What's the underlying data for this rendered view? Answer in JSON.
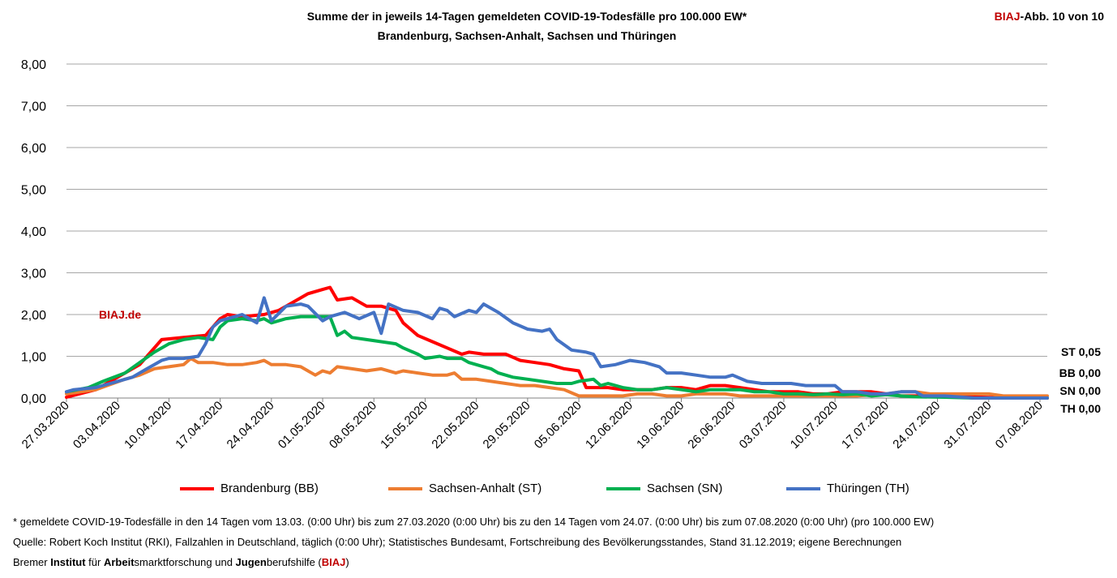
{
  "header": {
    "title_line1": "Summe der in jeweils 14-Tagen gemeldeten COVID-19-Todesfälle pro 100.000 EW*",
    "title_line2": "Brandenburg, Sachsen-Anhalt, Sachsen und Thüringen",
    "badge_red": "BIAJ",
    "badge_rest": "-Abb. 10 von 10"
  },
  "watermark": "BIAJ.de",
  "end_labels": [
    "ST 0,05",
    "BB 0,00",
    "SN 0,00",
    "TH 0,00"
  ],
  "footer": {
    "note": "* gemeldete COVID-19-Todesfälle in den 14 Tagen vom 13.03. (0:00 Uhr) bis zum 27.03.2020 (0:00 Uhr) bis zu den 14 Tagen vom 24.07. (0:00 Uhr) bis zum 07.08.2020 (0:00 Uhr) (pro 100.000 EW)",
    "source": "Quelle: Robert Koch Institut (RKI), Fallzahlen in Deutschland, täglich (0:00 Uhr); Statistisches Bundesamt, Fortschreibung des Bevölkerungsstandes, Stand 31.12.2019; eigene Berechnungen",
    "org_1": "Bremer ",
    "org_2": "Institut",
    "org_3": " für ",
    "org_4": "Arbeit",
    "org_5": "smarktforschung und ",
    "org_6": "Jugen",
    "org_7": "berufshilfe (",
    "org_8": "BIAJ",
    "org_9": ")"
  },
  "chart_data": {
    "type": "line",
    "ylim": [
      0,
      8
    ],
    "y_ticks": [
      "0,00",
      "1,00",
      "2,00",
      "3,00",
      "4,00",
      "5,00",
      "6,00",
      "7,00",
      "8,00"
    ],
    "x_tick_labels": [
      "27.03.2020",
      "03.04.2020",
      "10.04.2020",
      "17.04.2020",
      "24.04.2020",
      "01.05.2020",
      "08.05.2020",
      "15.05.2020",
      "22.05.2020",
      "29.05.2020",
      "05.06.2020",
      "12.06.2020",
      "19.06.2020",
      "26.06.2020",
      "03.07.2020",
      "10.07.2020",
      "17.07.2020",
      "24.07.2020",
      "31.07.2020",
      "07.08.2020"
    ],
    "grid": "horizontal",
    "legend_position": "bottom",
    "series": [
      {
        "name": "Brandenburg (BB)",
        "color": "#ff0000",
        "points": [
          [
            0,
            0.02
          ],
          [
            4,
            0.2
          ],
          [
            7,
            0.5
          ],
          [
            10,
            0.8
          ],
          [
            13,
            1.4
          ],
          [
            16,
            1.45
          ],
          [
            19,
            1.5
          ],
          [
            21,
            1.9
          ],
          [
            22,
            2.0
          ],
          [
            24,
            1.95
          ],
          [
            27,
            2.0
          ],
          [
            29,
            2.1
          ],
          [
            31,
            2.3
          ],
          [
            33,
            2.5
          ],
          [
            35,
            2.6
          ],
          [
            36,
            2.65
          ],
          [
            37,
            2.35
          ],
          [
            39,
            2.4
          ],
          [
            41,
            2.2
          ],
          [
            43,
            2.2
          ],
          [
            45,
            2.1
          ],
          [
            46,
            1.8
          ],
          [
            48,
            1.5
          ],
          [
            50,
            1.35
          ],
          [
            52,
            1.2
          ],
          [
            54,
            1.05
          ],
          [
            55,
            1.1
          ],
          [
            57,
            1.05
          ],
          [
            60,
            1.05
          ],
          [
            62,
            0.9
          ],
          [
            64,
            0.85
          ],
          [
            66,
            0.8
          ],
          [
            68,
            0.7
          ],
          [
            70,
            0.65
          ],
          [
            71,
            0.25
          ],
          [
            74,
            0.25
          ],
          [
            76,
            0.2
          ],
          [
            78,
            0.2
          ],
          [
            80,
            0.2
          ],
          [
            82,
            0.25
          ],
          [
            84,
            0.25
          ],
          [
            86,
            0.2
          ],
          [
            88,
            0.3
          ],
          [
            90,
            0.3
          ],
          [
            92,
            0.25
          ],
          [
            94,
            0.2
          ],
          [
            96,
            0.15
          ],
          [
            98,
            0.15
          ],
          [
            100,
            0.15
          ],
          [
            102,
            0.1
          ],
          [
            104,
            0.1
          ],
          [
            106,
            0.15
          ],
          [
            108,
            0.15
          ],
          [
            110,
            0.15
          ],
          [
            112,
            0.1
          ],
          [
            114,
            0.05
          ],
          [
            116,
            0.05
          ],
          [
            120,
            0.05
          ],
          [
            125,
            0.02
          ],
          [
            130,
            0.0
          ],
          [
            134,
            0.0
          ]
        ]
      },
      {
        "name": "Sachsen-Anhalt (ST)",
        "color": "#ed7d31",
        "points": [
          [
            0,
            0.1
          ],
          [
            4,
            0.2
          ],
          [
            8,
            0.45
          ],
          [
            10,
            0.55
          ],
          [
            12,
            0.7
          ],
          [
            14,
            0.75
          ],
          [
            16,
            0.8
          ],
          [
            17,
            0.95
          ],
          [
            18,
            0.85
          ],
          [
            20,
            0.85
          ],
          [
            22,
            0.8
          ],
          [
            24,
            0.8
          ],
          [
            26,
            0.85
          ],
          [
            27,
            0.9
          ],
          [
            28,
            0.8
          ],
          [
            30,
            0.8
          ],
          [
            32,
            0.75
          ],
          [
            34,
            0.55
          ],
          [
            35,
            0.65
          ],
          [
            36,
            0.6
          ],
          [
            37,
            0.75
          ],
          [
            39,
            0.7
          ],
          [
            41,
            0.65
          ],
          [
            43,
            0.7
          ],
          [
            45,
            0.6
          ],
          [
            46,
            0.65
          ],
          [
            48,
            0.6
          ],
          [
            50,
            0.55
          ],
          [
            52,
            0.55
          ],
          [
            53,
            0.6
          ],
          [
            54,
            0.45
          ],
          [
            56,
            0.45
          ],
          [
            58,
            0.4
          ],
          [
            60,
            0.35
          ],
          [
            62,
            0.3
          ],
          [
            64,
            0.3
          ],
          [
            66,
            0.25
          ],
          [
            68,
            0.2
          ],
          [
            70,
            0.05
          ],
          [
            72,
            0.05
          ],
          [
            76,
            0.05
          ],
          [
            78,
            0.1
          ],
          [
            80,
            0.1
          ],
          [
            82,
            0.05
          ],
          [
            84,
            0.05
          ],
          [
            86,
            0.1
          ],
          [
            88,
            0.1
          ],
          [
            90,
            0.1
          ],
          [
            92,
            0.05
          ],
          [
            94,
            0.05
          ],
          [
            96,
            0.05
          ],
          [
            98,
            0.05
          ],
          [
            100,
            0.05
          ],
          [
            104,
            0.05
          ],
          [
            108,
            0.05
          ],
          [
            112,
            0.1
          ],
          [
            114,
            0.15
          ],
          [
            116,
            0.15
          ],
          [
            118,
            0.1
          ],
          [
            122,
            0.1
          ],
          [
            126,
            0.1
          ],
          [
            128,
            0.05
          ],
          [
            130,
            0.05
          ],
          [
            134,
            0.05
          ]
        ]
      },
      {
        "name": "Sachsen (SN)",
        "color": "#00b050",
        "points": [
          [
            0,
            0.15
          ],
          [
            3,
            0.25
          ],
          [
            5,
            0.4
          ],
          [
            8,
            0.6
          ],
          [
            10,
            0.85
          ],
          [
            12,
            1.1
          ],
          [
            14,
            1.3
          ],
          [
            16,
            1.4
          ],
          [
            18,
            1.45
          ],
          [
            20,
            1.4
          ],
          [
            21,
            1.7
          ],
          [
            22,
            1.85
          ],
          [
            24,
            1.9
          ],
          [
            26,
            1.85
          ],
          [
            27,
            1.9
          ],
          [
            28,
            1.8
          ],
          [
            30,
            1.9
          ],
          [
            32,
            1.95
          ],
          [
            34,
            1.95
          ],
          [
            36,
            1.95
          ],
          [
            37,
            1.5
          ],
          [
            38,
            1.6
          ],
          [
            39,
            1.45
          ],
          [
            41,
            1.4
          ],
          [
            43,
            1.35
          ],
          [
            45,
            1.3
          ],
          [
            46,
            1.2
          ],
          [
            48,
            1.05
          ],
          [
            49,
            0.95
          ],
          [
            51,
            1.0
          ],
          [
            52,
            0.95
          ],
          [
            54,
            0.95
          ],
          [
            55,
            0.85
          ],
          [
            57,
            0.75
          ],
          [
            58,
            0.7
          ],
          [
            59,
            0.6
          ],
          [
            61,
            0.5
          ],
          [
            63,
            0.45
          ],
          [
            65,
            0.4
          ],
          [
            67,
            0.35
          ],
          [
            69,
            0.35
          ],
          [
            70,
            0.4
          ],
          [
            72,
            0.45
          ],
          [
            73,
            0.3
          ],
          [
            74,
            0.35
          ],
          [
            76,
            0.25
          ],
          [
            78,
            0.2
          ],
          [
            80,
            0.2
          ],
          [
            82,
            0.25
          ],
          [
            84,
            0.2
          ],
          [
            86,
            0.15
          ],
          [
            88,
            0.2
          ],
          [
            90,
            0.2
          ],
          [
            92,
            0.2
          ],
          [
            94,
            0.15
          ],
          [
            96,
            0.15
          ],
          [
            98,
            0.1
          ],
          [
            100,
            0.1
          ],
          [
            102,
            0.08
          ],
          [
            104,
            0.1
          ],
          [
            106,
            0.08
          ],
          [
            108,
            0.1
          ],
          [
            110,
            0.05
          ],
          [
            112,
            0.08
          ],
          [
            114,
            0.05
          ],
          [
            116,
            0.03
          ],
          [
            120,
            0.02
          ],
          [
            124,
            0.0
          ],
          [
            134,
            0.0
          ]
        ]
      },
      {
        "name": "Thüringen (TH)",
        "color": "#4472c4",
        "points": [
          [
            0,
            0.15
          ],
          [
            1,
            0.2
          ],
          [
            4,
            0.25
          ],
          [
            7,
            0.4
          ],
          [
            9,
            0.5
          ],
          [
            11,
            0.7
          ],
          [
            12,
            0.8
          ],
          [
            13,
            0.9
          ],
          [
            14,
            0.95
          ],
          [
            16,
            0.95
          ],
          [
            18,
            1.0
          ],
          [
            19,
            1.3
          ],
          [
            20,
            1.7
          ],
          [
            21,
            1.85
          ],
          [
            22,
            1.9
          ],
          [
            24,
            2.0
          ],
          [
            26,
            1.8
          ],
          [
            27,
            2.4
          ],
          [
            28,
            1.85
          ],
          [
            30,
            2.2
          ],
          [
            32,
            2.25
          ],
          [
            33,
            2.2
          ],
          [
            35,
            1.85
          ],
          [
            36,
            1.95
          ],
          [
            38,
            2.05
          ],
          [
            40,
            1.9
          ],
          [
            42,
            2.05
          ],
          [
            43,
            1.55
          ],
          [
            44,
            2.25
          ],
          [
            46,
            2.1
          ],
          [
            48,
            2.05
          ],
          [
            50,
            1.9
          ],
          [
            51,
            2.15
          ],
          [
            52,
            2.1
          ],
          [
            53,
            1.95
          ],
          [
            55,
            2.1
          ],
          [
            56,
            2.05
          ],
          [
            57,
            2.25
          ],
          [
            59,
            2.05
          ],
          [
            61,
            1.8
          ],
          [
            63,
            1.65
          ],
          [
            65,
            1.6
          ],
          [
            66,
            1.65
          ],
          [
            67,
            1.4
          ],
          [
            69,
            1.15
          ],
          [
            71,
            1.1
          ],
          [
            72,
            1.05
          ],
          [
            73,
            0.75
          ],
          [
            75,
            0.8
          ],
          [
            77,
            0.9
          ],
          [
            79,
            0.85
          ],
          [
            81,
            0.75
          ],
          [
            82,
            0.6
          ],
          [
            84,
            0.6
          ],
          [
            86,
            0.55
          ],
          [
            88,
            0.5
          ],
          [
            90,
            0.5
          ],
          [
            91,
            0.55
          ],
          [
            93,
            0.4
          ],
          [
            95,
            0.35
          ],
          [
            97,
            0.35
          ],
          [
            99,
            0.35
          ],
          [
            101,
            0.3
          ],
          [
            103,
            0.3
          ],
          [
            105,
            0.3
          ],
          [
            106,
            0.15
          ],
          [
            108,
            0.15
          ],
          [
            110,
            0.1
          ],
          [
            112,
            0.1
          ],
          [
            114,
            0.15
          ],
          [
            116,
            0.15
          ],
          [
            117,
            0.05
          ],
          [
            120,
            0.05
          ],
          [
            124,
            0.0
          ],
          [
            134,
            0.0
          ]
        ]
      }
    ]
  }
}
